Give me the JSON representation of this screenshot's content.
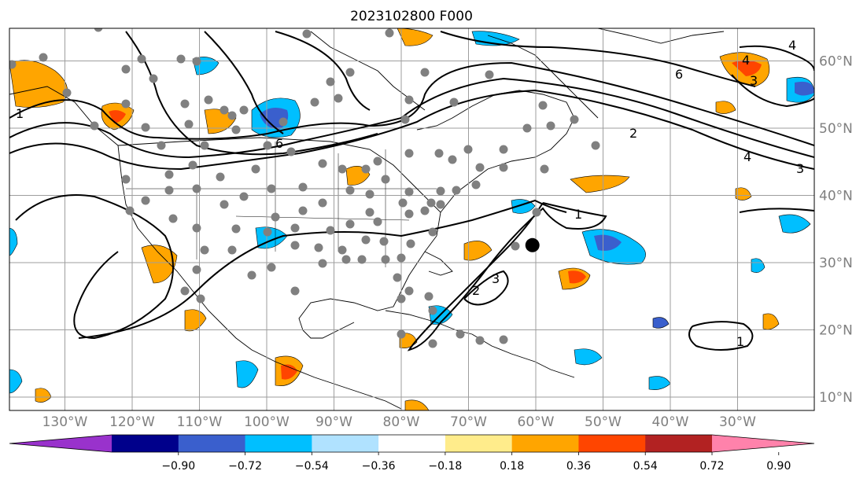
{
  "title": "2023102800 F000",
  "lat_labels": [
    {
      "text": "60°N",
      "lat": 60
    },
    {
      "text": "50°N",
      "lat": 50
    },
    {
      "text": "40°N",
      "lat": 40
    },
    {
      "text": "30°N",
      "lat": 30
    },
    {
      "text": "20°N",
      "lat": 20
    },
    {
      "text": "10°N",
      "lat": 10
    }
  ],
  "lon_labels": [
    {
      "text": "130°W",
      "lon": -130
    },
    {
      "text": "120°W",
      "lon": -120
    },
    {
      "text": "110°W",
      "lon": -110
    },
    {
      "text": "100°W",
      "lon": -100
    },
    {
      "text": "90°W",
      "lon": -90
    },
    {
      "text": "80°W",
      "lon": -80
    },
    {
      "text": "70°W",
      "lon": -70
    },
    {
      "text": "60°W",
      "lon": -60
    },
    {
      "text": "50°W",
      "lon": -50
    },
    {
      "text": "40°W",
      "lon": -40
    },
    {
      "text": "30°W",
      "lon": -30
    }
  ],
  "colorbar": {
    "colors": [
      "#9932cc",
      "#00008b",
      "#3a5fcd",
      "#00bfff",
      "#b0e2ff",
      "#ffffff",
      "#ffec8b",
      "#ffa500",
      "#ff4500",
      "#b22222",
      "#ff82ab"
    ],
    "ticks": [
      "−0.90",
      "−0.72",
      "−0.54",
      "−0.36",
      "−0.18",
      "0.18",
      "0.36",
      "0.54",
      "0.72",
      "0.90"
    ]
  },
  "contour_labels": [
    "1",
    "6",
    "2",
    "4",
    "3",
    "4",
    "6",
    "3",
    "4",
    "1",
    "2",
    "3",
    "1"
  ],
  "marker": {
    "lon": -60.5,
    "lat": 32.6
  }
}
